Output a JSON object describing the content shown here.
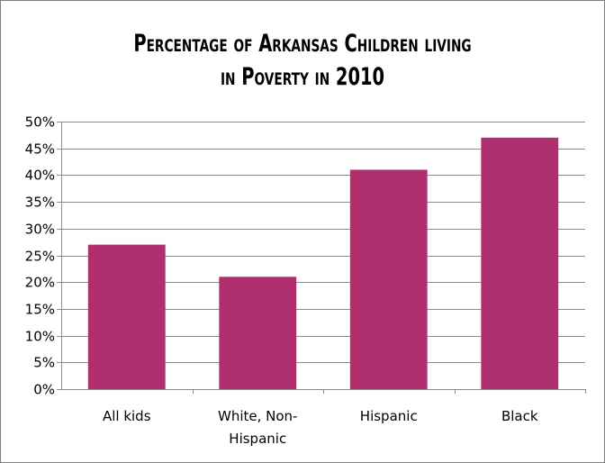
{
  "colors": {
    "bar": "#b0306f",
    "grid": "#8c8c8c",
    "axis": "#8c8c8c",
    "background": "#ffffff"
  },
  "chart_data": {
    "type": "bar",
    "title_lines": [
      "Percentage of Arkansas Children living",
      "in Poverty in 2010"
    ],
    "title": "Percentage of Arkansas Children living in Poverty in 2010",
    "xlabel": "",
    "ylabel": "",
    "categories": [
      [
        "All kids"
      ],
      [
        "White, Non-",
        "Hispanic"
      ],
      [
        "Hispanic"
      ],
      [
        "Black"
      ]
    ],
    "category_names": [
      "All kids",
      "White, Non-Hispanic",
      "Hispanic",
      "Black"
    ],
    "values": [
      0.27,
      0.21,
      0.41,
      0.47
    ],
    "ylim": [
      0,
      0.5
    ],
    "ytick_values": [
      0,
      0.05,
      0.1,
      0.15,
      0.2,
      0.25,
      0.3,
      0.35,
      0.4,
      0.45,
      0.5
    ],
    "ytick_labels": [
      "0%",
      "5%",
      "10%",
      "15%",
      "20%",
      "25%",
      "30%",
      "35%",
      "40%",
      "45%",
      "50%"
    ],
    "grid": true,
    "legend": "none"
  }
}
